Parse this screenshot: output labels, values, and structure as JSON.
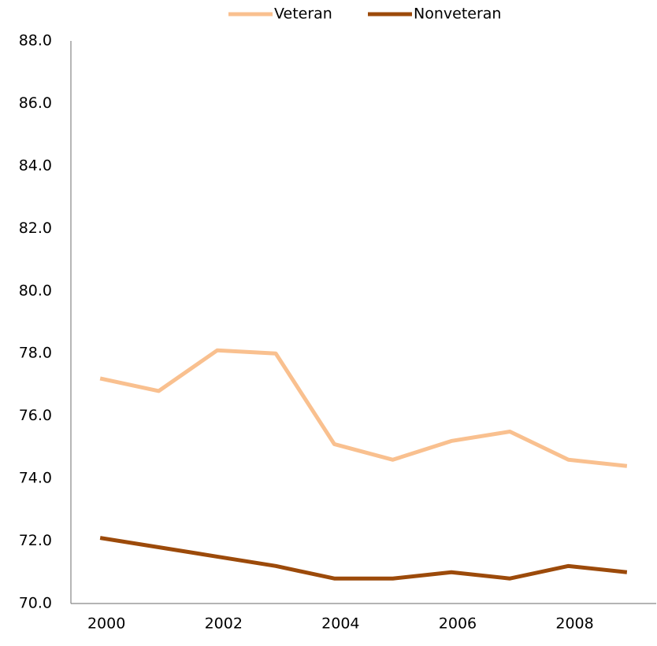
{
  "chart_data": {
    "type": "line",
    "categories": [
      "2000",
      null,
      "2002",
      null,
      "2004",
      null,
      "2006",
      null,
      "2008",
      null
    ],
    "series": [
      {
        "name": "Veteran",
        "color": "#f9c08f",
        "values": [
          77.2,
          76.8,
          78.1,
          78.0,
          75.1,
          74.6,
          75.2,
          75.5,
          74.6,
          74.4
        ]
      },
      {
        "name": "Nonveteran",
        "color": "#9c4a0a",
        "values": [
          72.1,
          71.8,
          71.5,
          71.2,
          70.8,
          70.8,
          71.0,
          70.8,
          71.2,
          71.0
        ]
      }
    ],
    "ylim": [
      70,
      88
    ],
    "yticks": [
      {
        "value": 70,
        "label": "70.0"
      },
      {
        "value": 72,
        "label": "72.0"
      },
      {
        "value": 74,
        "label": "74.0"
      },
      {
        "value": 76,
        "label": "76.0"
      },
      {
        "value": 78,
        "label": "78.0"
      },
      {
        "value": 80,
        "label": "80.0"
      },
      {
        "value": 82,
        "label": "82.0"
      },
      {
        "value": 84,
        "label": "84.0"
      },
      {
        "value": 86,
        "label": "86.0"
      },
      {
        "value": 88,
        "label": "88.0"
      }
    ],
    "grid": false,
    "legend": "top"
  }
}
